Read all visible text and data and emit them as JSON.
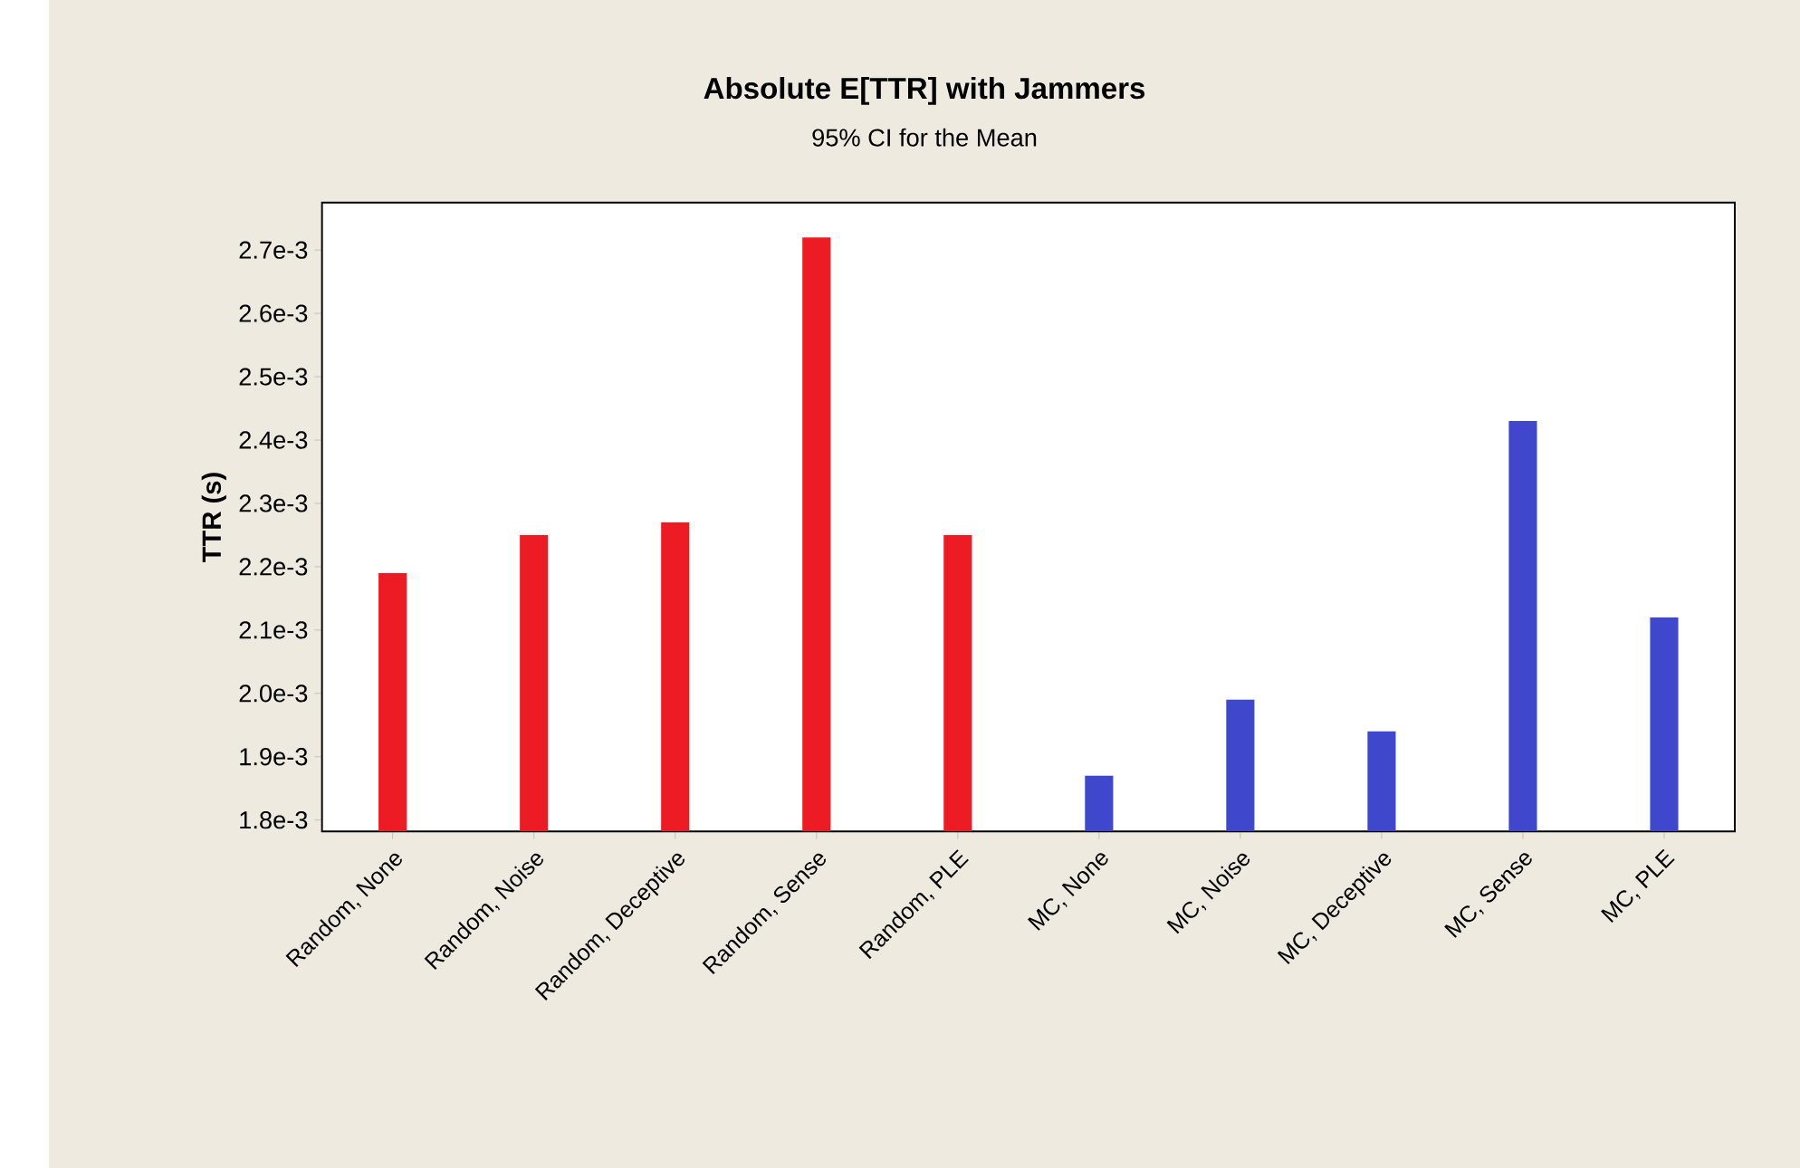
{
  "chart_data": {
    "type": "bar",
    "title": "Absolute E[TTR] with Jammers",
    "subtitle": "95% CI for the Mean",
    "ylabel": "TTR (s)",
    "categories": [
      "Random, None",
      "Random, Noise",
      "Random, Deceptive",
      "Random, Sense",
      "Random, PLE",
      "MC, None",
      "MC, Noise",
      "MC, Deceptive",
      "MC, Sense",
      "MC, PLE"
    ],
    "values": [
      0.00219,
      0.00225,
      0.00227,
      0.00272,
      0.00225,
      0.00187,
      0.00199,
      0.00194,
      0.00243,
      0.00212
    ],
    "colors": [
      "#ed1c24",
      "#ed1c24",
      "#ed1c24",
      "#ed1c24",
      "#ed1c24",
      "#3f48cc",
      "#3f48cc",
      "#3f48cc",
      "#3f48cc",
      "#3f48cc"
    ],
    "ylim": [
      0.001782,
      0.002775
    ],
    "yticks": [
      {
        "value": 0.0018,
        "label": "1.8e-3"
      },
      {
        "value": 0.0019,
        "label": "1.9e-3"
      },
      {
        "value": 0.002,
        "label": "2.0e-3"
      },
      {
        "value": 0.0021,
        "label": "2.1e-3"
      },
      {
        "value": 0.0022,
        "label": "2.2e-3"
      },
      {
        "value": 0.0023,
        "label": "2.3e-3"
      },
      {
        "value": 0.0024,
        "label": "2.4e-3"
      },
      {
        "value": 0.0025,
        "label": "2.5e-3"
      },
      {
        "value": 0.0026,
        "label": "2.6e-3"
      },
      {
        "value": 0.0027,
        "label": "2.7e-3"
      }
    ]
  }
}
